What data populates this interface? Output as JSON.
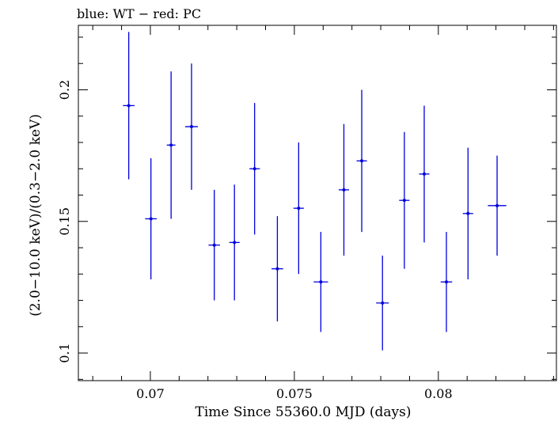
{
  "chart_data": {
    "type": "scatter",
    "title": "blue: WT − red: PC",
    "xlabel": "Time Since 55360.0 MJD (days)",
    "ylabel": "(2.0−10.0 keV)/(0.3−2.0 keV)",
    "xlim": [
      0.0675,
      0.0841
    ],
    "ylim": [
      0.0895,
      0.2245
    ],
    "x_ticks": [
      {
        "value": 0.07,
        "label": "0.07"
      },
      {
        "value": 0.075,
        "label": "0.075"
      },
      {
        "value": 0.08,
        "label": "0.08"
      }
    ],
    "y_ticks": [
      {
        "value": 0.1,
        "label": "0.1"
      },
      {
        "value": 0.15,
        "label": "0.15"
      },
      {
        "value": 0.2,
        "label": "0.2"
      }
    ],
    "series": [
      {
        "color": "#0000dd",
        "points": [
          {
            "x": 0.06925,
            "xerr": 0.0002,
            "y": 0.194,
            "yerr": 0.028
          },
          {
            "x": 0.07002,
            "xerr": 0.0002,
            "y": 0.151,
            "yerr": 0.023
          },
          {
            "x": 0.07072,
            "xerr": 0.00015,
            "y": 0.179,
            "yerr": 0.028
          },
          {
            "x": 0.07143,
            "xerr": 0.00022,
            "y": 0.186,
            "yerr": 0.024
          },
          {
            "x": 0.07222,
            "xerr": 0.0002,
            "y": 0.141,
            "yerr": 0.021
          },
          {
            "x": 0.07292,
            "xerr": 0.00018,
            "y": 0.142,
            "yerr": 0.022
          },
          {
            "x": 0.07362,
            "xerr": 0.00018,
            "y": 0.17,
            "yerr": 0.025
          },
          {
            "x": 0.07441,
            "xerr": 0.0002,
            "y": 0.132,
            "yerr": 0.02
          },
          {
            "x": 0.07515,
            "xerr": 0.00018,
            "y": 0.155,
            "yerr": 0.025
          },
          {
            "x": 0.07592,
            "xerr": 0.00025,
            "y": 0.127,
            "yerr": 0.019
          },
          {
            "x": 0.07672,
            "xerr": 0.00018,
            "y": 0.162,
            "yerr": 0.025
          },
          {
            "x": 0.07734,
            "xerr": 0.00018,
            "y": 0.173,
            "yerr": 0.027
          },
          {
            "x": 0.07806,
            "xerr": 0.00022,
            "y": 0.119,
            "yerr": 0.018
          },
          {
            "x": 0.07882,
            "xerr": 0.00018,
            "y": 0.158,
            "yerr": 0.026
          },
          {
            "x": 0.07951,
            "xerr": 0.00018,
            "y": 0.168,
            "yerr": 0.026
          },
          {
            "x": 0.08028,
            "xerr": 0.0002,
            "y": 0.127,
            "yerr": 0.019
          },
          {
            "x": 0.08103,
            "xerr": 0.00018,
            "y": 0.153,
            "yerr": 0.025
          },
          {
            "x": 0.08204,
            "xerr": 0.00032,
            "y": 0.156,
            "yerr": 0.019
          }
        ]
      }
    ]
  }
}
